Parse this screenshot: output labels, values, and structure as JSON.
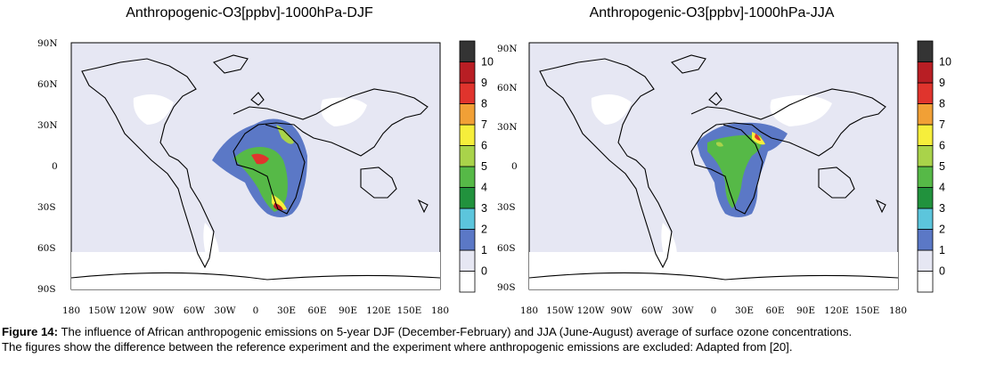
{
  "maps": [
    {
      "title": "Anthropogenic-O3[ppbv]-1000hPa-DJF",
      "season": "DJF",
      "lat_labels": [
        "90N",
        "60N",
        "30N",
        "0",
        "30S",
        "60S",
        "90S"
      ],
      "lon_labels": [
        "180",
        "150W",
        "120W",
        "90W",
        "60W",
        "30W",
        "0",
        "30E",
        "60E",
        "90E",
        "120E",
        "150E",
        "180"
      ]
    },
    {
      "title": "Anthropogenic-O3[ppbv]-1000hPa-JJA",
      "season": "JJA",
      "lat_labels": [
        "90N",
        "60N",
        "30N",
        "0",
        "30S",
        "60S",
        "90S"
      ],
      "lon_labels": [
        "180",
        "150W",
        "120W",
        "90W",
        "60W",
        "30W",
        "0",
        "30E",
        "60E",
        "90E",
        "120E",
        "150E",
        "180"
      ]
    }
  ],
  "colorbar": {
    "labels": [
      "0",
      "1",
      "2",
      "3",
      "4",
      "5",
      "6",
      "7",
      "8",
      "9",
      "10"
    ],
    "colors": [
      "#ffffff",
      "#e6e7f3",
      "#5b78c6",
      "#5cc5dc",
      "#21923d",
      "#56b947",
      "#a9d34a",
      "#f6ee3b",
      "#f1a036",
      "#e0342d",
      "#b81e24",
      "#343434"
    ]
  },
  "caption": {
    "lead": "Figure 14:",
    "line1": " The influence of African anthropogenic emissions on 5-year DJF (December-February) and JJA (June-August) average of surface ozone concentrations.",
    "line2": "The figures show the difference between the reference experiment and the experiment where anthropogenic emissions are excluded: Adapted from [20]."
  }
}
